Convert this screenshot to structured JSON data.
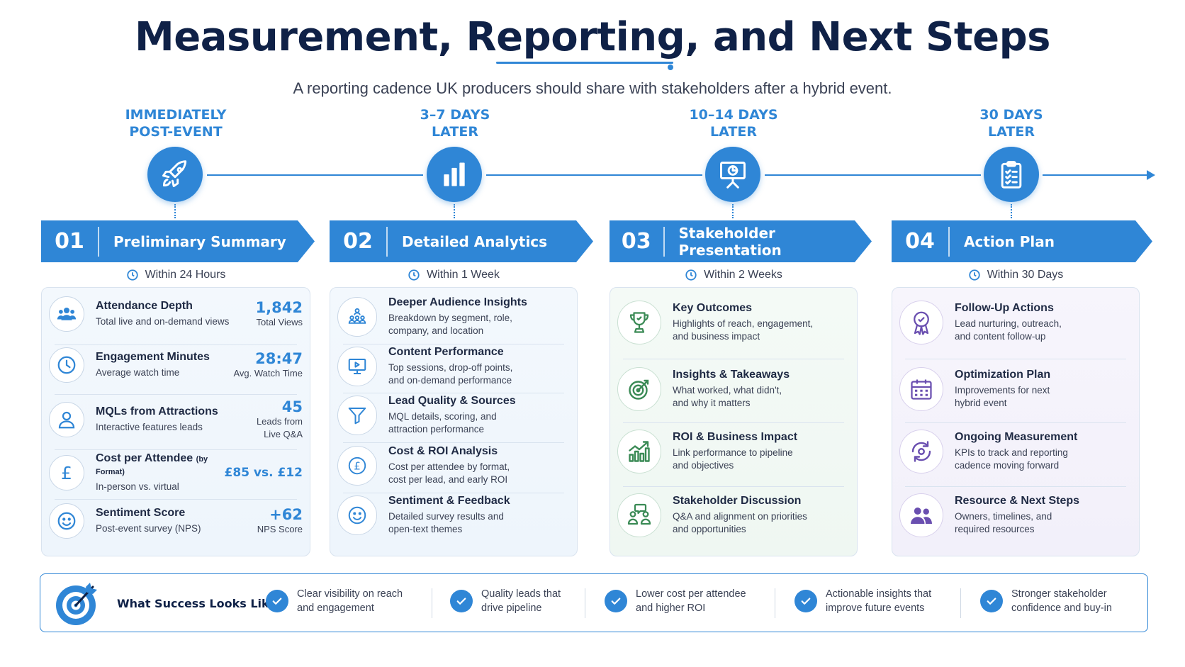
{
  "title": "Measurement, Reporting, and Next Steps",
  "subtitle": "A reporting cadence UK producers should share with stakeholders after a hybrid event.",
  "colors": {
    "primary": "#2f86d6",
    "navy": "#0f2147",
    "green": "#3a8a55",
    "purple": "#6a4fb0"
  },
  "phases": [
    {
      "label_line1": "IMMEDIATELY",
      "label_line2": "POST-EVENT",
      "icon": "rocket-icon",
      "num": "01",
      "name": "Preliminary Summary",
      "when": "Within 24 Hours"
    },
    {
      "label_line1": "3–7 DAYS",
      "label_line2": "LATER",
      "icon": "bar-chart-icon",
      "num": "02",
      "name": "Detailed Analytics",
      "when": "Within 1 Week"
    },
    {
      "label_line1": "10–14 DAYS",
      "label_line2": "LATER",
      "icon": "presentation-icon",
      "num": "03",
      "name": "Stakeholder Presentation",
      "when": "Within 2 Weeks"
    },
    {
      "label_line1": "30 DAYS",
      "label_line2": "LATER",
      "icon": "clipboard-icon",
      "num": "04",
      "name": "Action Plan",
      "when": "Within 30 Days"
    }
  ],
  "summary": [
    {
      "title": "Attendance Depth",
      "desc": "Total live and on-demand views",
      "value": "1,842",
      "value_label": "Total Views",
      "icon": "people-icon"
    },
    {
      "title": "Engagement Minutes",
      "desc": "Average watch time",
      "value": "28:47",
      "value_label": "Avg. Watch Time",
      "icon": "clock-icon"
    },
    {
      "title": "MQLs from Attractions",
      "desc": "Interactive features leads",
      "value": "45",
      "value_label_line1": "Leads from",
      "value_label_line2": "Live Q&A",
      "icon": "user-icon"
    },
    {
      "title": "Cost per Attendee",
      "title_suffix": "(by Format)",
      "desc": "In-person vs. virtual",
      "value": "£85 vs. £12",
      "icon": "pound-icon"
    },
    {
      "title": "Sentiment Score",
      "desc": "Post-event survey (NPS)",
      "value": "+62",
      "value_label": "NPS Score",
      "icon": "smile-icon"
    }
  ],
  "analytics": [
    {
      "title": "Deeper Audience Insights",
      "desc1": "Breakdown by segment, role,",
      "desc2": "company, and location",
      "icon": "audience-icon"
    },
    {
      "title": "Content Performance",
      "desc1": "Top sessions, drop-off points,",
      "desc2": "and on-demand performance",
      "icon": "monitor-play-icon"
    },
    {
      "title": "Lead Quality & Sources",
      "desc1": "MQL details, scoring, and",
      "desc2": "attraction performance",
      "icon": "funnel-icon"
    },
    {
      "title": "Cost & ROI Analysis",
      "desc1": "Cost per attendee by format,",
      "desc2": "cost per lead, and early ROI",
      "icon": "pound-icon"
    },
    {
      "title": "Sentiment & Feedback",
      "desc1": "Detailed survey results and",
      "desc2": "open-text themes",
      "icon": "smile-icon"
    }
  ],
  "presentation": [
    {
      "title": "Key Outcomes",
      "desc1": "Highlights of reach, engagement,",
      "desc2": "and business impact",
      "icon": "trophy-icon"
    },
    {
      "title": "Insights & Takeaways",
      "desc1": "What worked, what didn't,",
      "desc2": "and why it matters",
      "icon": "target-icon"
    },
    {
      "title": "ROI & Business Impact",
      "desc1": "Link performance to pipeline",
      "desc2": "and objectives",
      "icon": "growth-chart-icon"
    },
    {
      "title": "Stakeholder Discussion",
      "desc1": "Q&A and alignment on priorities",
      "desc2": "and opportunities",
      "icon": "discussion-icon"
    }
  ],
  "action": [
    {
      "title": "Follow-Up Actions",
      "desc1": "Lead nurturing, outreach,",
      "desc2": "and content follow-up",
      "icon": "badge-check-icon"
    },
    {
      "title": "Optimization Plan",
      "desc1": "Improvements for next",
      "desc2": "hybrid event",
      "icon": "calendar-icon"
    },
    {
      "title": "Ongoing Measurement",
      "desc1": "KPIs to track and reporting",
      "desc2": "cadence moving forward",
      "icon": "refresh-icon"
    },
    {
      "title": "Resource & Next Steps",
      "desc1": "Owners, timelines, and",
      "desc2": "required resources",
      "icon": "team-icon"
    }
  ],
  "success": {
    "title": "What Success Looks Like",
    "icon": "bullseye-icon",
    "items": [
      {
        "line1": "Clear visibility on reach",
        "line2": "and engagement"
      },
      {
        "line1": "Quality leads that",
        "line2": "drive pipeline"
      },
      {
        "line1": "Lower cost per attendee",
        "line2": "and higher ROI"
      },
      {
        "line1": "Actionable insights that",
        "line2": "improve future events"
      },
      {
        "line1": "Stronger stakeholder",
        "line2": "confidence and buy-in"
      }
    ]
  }
}
